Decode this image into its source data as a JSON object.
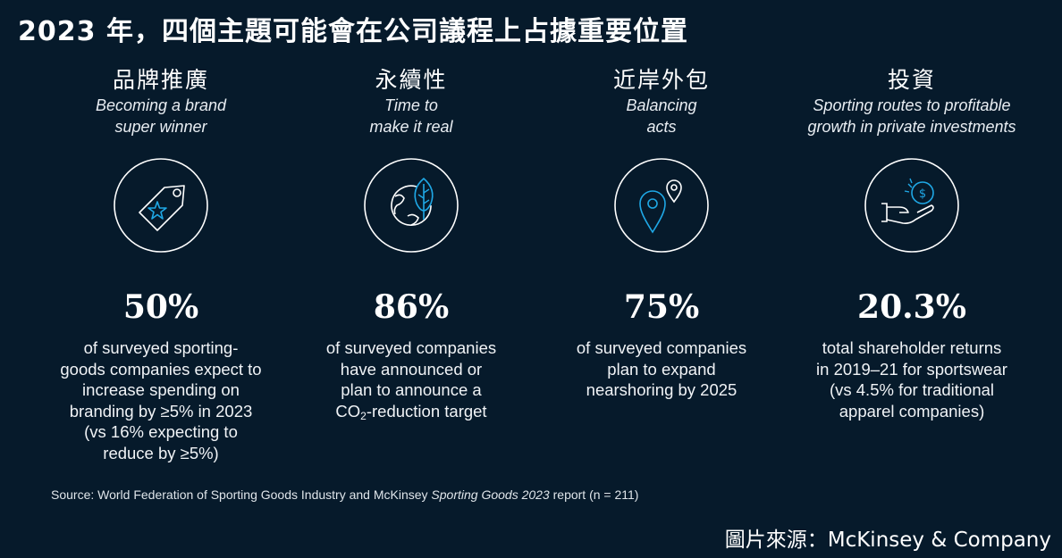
{
  "title": {
    "year": "2023",
    "text": " 年，四個主題可能會在公司議程上占據重要位置"
  },
  "columns": [
    {
      "heading": "品牌推廣",
      "subtitle": "Becoming a brand\nsuper winner",
      "icon": "price-tag-star-icon",
      "stat": "50%",
      "description": "of surveyed sporting-\ngoods companies expect to\nincrease spending on\nbranding by ≥5% in 2023\n(vs 16% expecting to\nreduce by ≥5%)"
    },
    {
      "heading": "永續性",
      "subtitle": "Time to\nmake it real",
      "icon": "globe-leaf-icon",
      "stat": "86%",
      "description_line1": "of surveyed companies\nhave announced or\nplan to announce a",
      "description_co": "CO",
      "description_sub": "2",
      "description_tail": "-reduction target"
    },
    {
      "heading": "近岸外包",
      "subtitle": "Balancing\nacts",
      "icon": "location-pins-icon",
      "stat": "75%",
      "description": "of surveyed companies\nplan to expand\nnearshoring by 2025"
    },
    {
      "heading": "投資",
      "subtitle": "Sporting routes to profitable\ngrowth in private investments",
      "icon": "hand-coin-icon",
      "stat": "20.3%",
      "description": "total shareholder returns\nin 2019–21 for sportswear\n(vs 4.5% for traditional\napparel companies)"
    }
  ],
  "source": {
    "prefix": "Source: World Federation of Sporting Goods Industry and McKinsey ",
    "report": "Sporting Goods 2023",
    "suffix": " report (n = 211)"
  },
  "credit": "圖片來源：McKinsey & Company",
  "colors": {
    "background": "#061a2b",
    "accent": "#1fa8e6",
    "stroke": "#ffffff"
  }
}
